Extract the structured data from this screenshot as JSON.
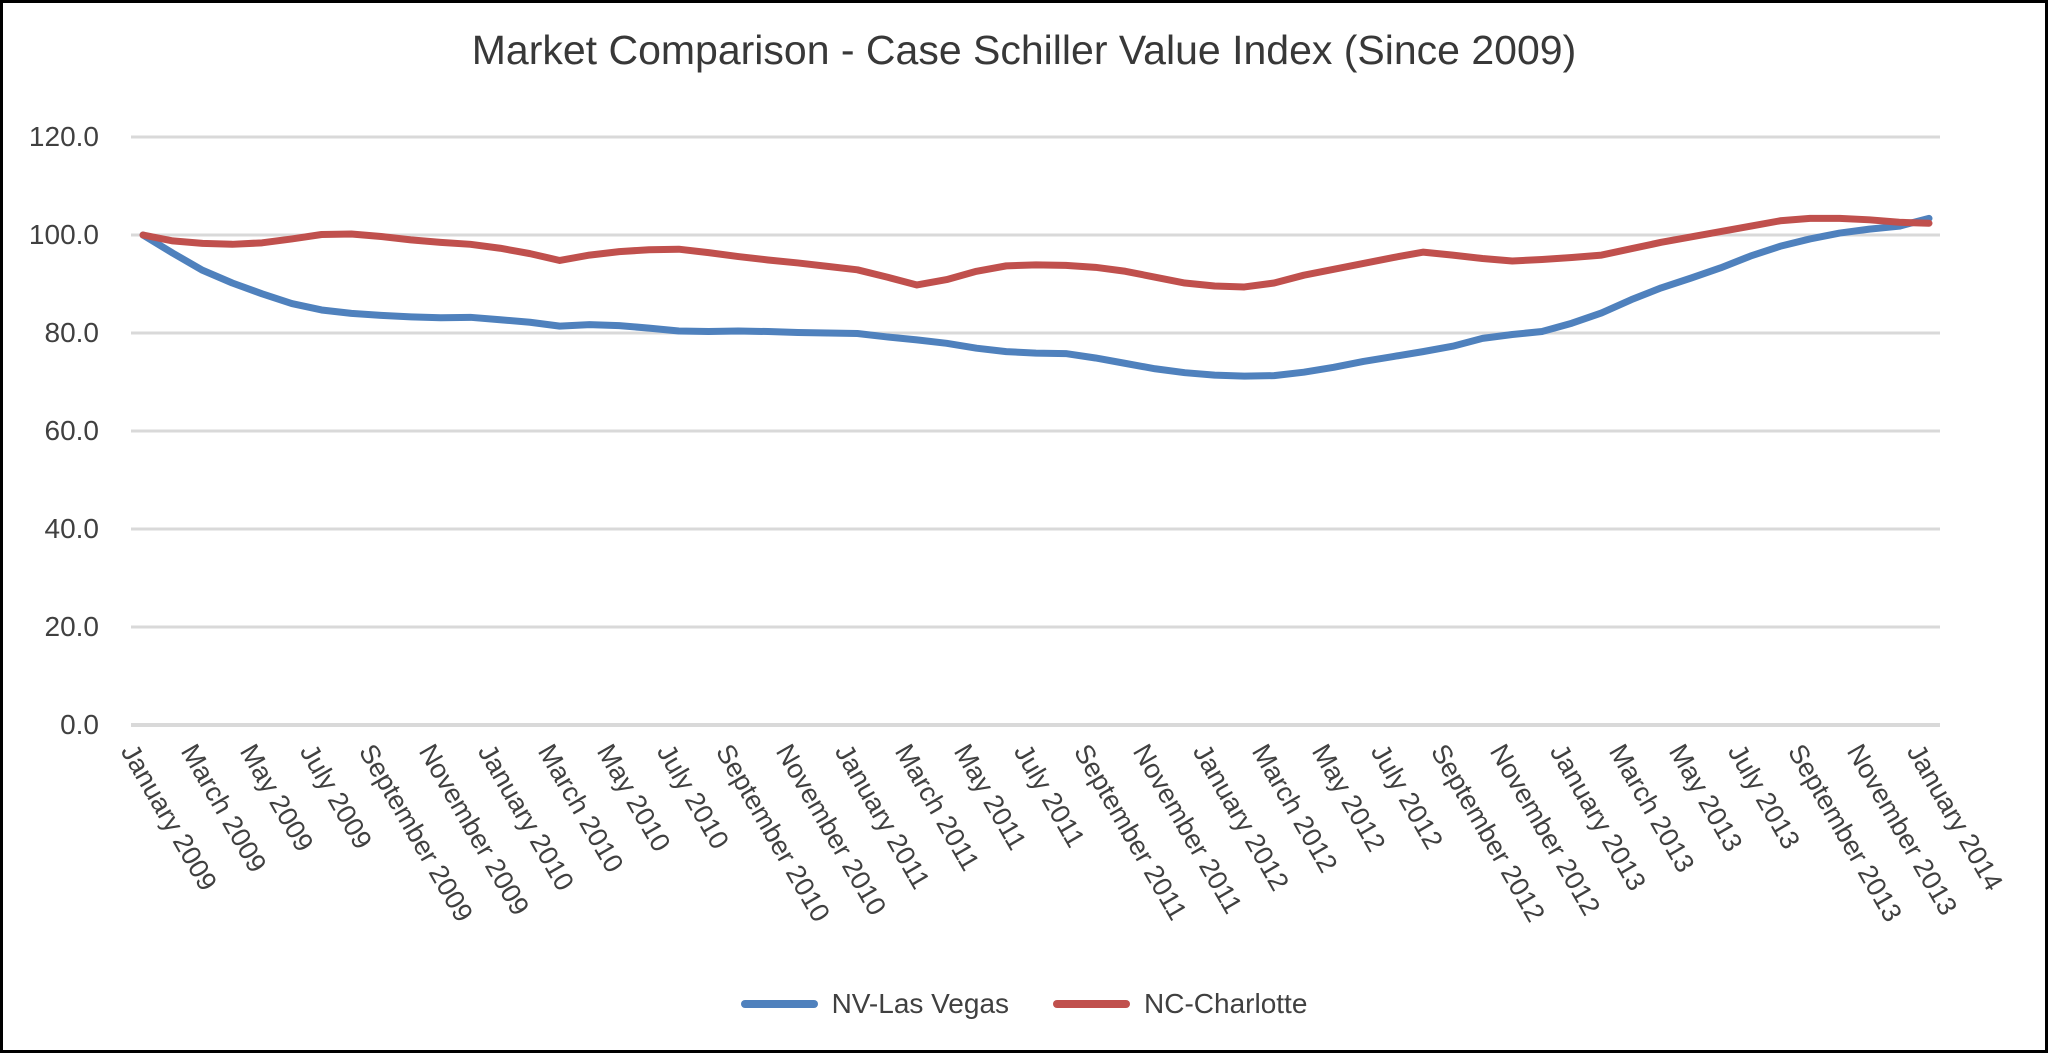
{
  "title": "Market Comparison - Case Schiller Value Index (Since 2009)",
  "legend": {
    "items": [
      {
        "label": "NV-Las Vegas",
        "color": "#4F81BD"
      },
      {
        "label": "NC-Charlotte",
        "color": "#C0504D"
      }
    ]
  },
  "chart_data": {
    "type": "line",
    "title": "Market Comparison - Case Schiller Value Index (Since 2009)",
    "xlabel": "",
    "ylabel": "",
    "ylim": [
      0,
      120
    ],
    "grid": "horizontal",
    "gridline_color": "#D9D9D9",
    "legend_position": "bottom",
    "x_months_total": 61,
    "xtick_every_months": 2,
    "xtick_labels": [
      "January 2009",
      "March 2009",
      "May 2009",
      "July 2009",
      "September 2009",
      "November 2009",
      "January 2010",
      "March 2010",
      "May 2010",
      "July 2010",
      "September 2010",
      "November 2010",
      "January 2011",
      "March 2011",
      "May 2011",
      "July 2011",
      "September 2011",
      "November 2011",
      "January 2012",
      "March 2012",
      "May 2012",
      "July 2012",
      "September 2012",
      "November 2012",
      "January 2013",
      "March 2013",
      "May 2013",
      "July 2013",
      "September 2013",
      "November 2013",
      "January 2014"
    ],
    "y_ticks": [
      "0.0",
      "20.0",
      "40.0",
      "60.0",
      "80.0",
      "100.0",
      "120.0"
    ],
    "series": [
      {
        "name": "NV-Las Vegas",
        "color": "#4F81BD",
        "values": [
          100.0,
          96.3,
          92.8,
          90.2,
          88.0,
          86.0,
          84.7,
          84.0,
          83.6,
          83.3,
          83.1,
          83.2,
          82.7,
          82.2,
          81.4,
          81.7,
          81.5,
          81.0,
          80.4,
          80.3,
          80.4,
          80.3,
          80.1,
          80.0,
          79.9,
          79.2,
          78.6,
          77.9,
          76.9,
          76.2,
          75.9,
          75.8,
          74.9,
          73.8,
          72.7,
          71.9,
          71.4,
          71.2,
          71.3,
          72.0,
          73.0,
          74.2,
          75.2,
          76.2,
          77.3,
          78.9,
          79.7,
          80.3,
          82.0,
          84.1,
          86.8,
          89.2,
          91.2,
          93.3,
          95.7,
          97.7,
          99.2,
          100.4,
          101.2,
          101.8,
          103.4
        ]
      },
      {
        "name": "NC-Charlotte",
        "color": "#C0504D",
        "values": [
          100.0,
          98.8,
          98.3,
          98.1,
          98.4,
          99.2,
          100.1,
          100.2,
          99.7,
          99.0,
          98.5,
          98.1,
          97.3,
          96.2,
          94.8,
          95.9,
          96.6,
          97.0,
          97.1,
          96.4,
          95.6,
          94.9,
          94.3,
          93.6,
          92.9,
          91.4,
          89.8,
          90.9,
          92.6,
          93.7,
          93.9,
          93.8,
          93.4,
          92.6,
          91.4,
          90.2,
          89.6,
          89.4,
          90.2,
          91.8,
          93.0,
          94.2,
          95.4,
          96.5,
          95.9,
          95.2,
          94.7,
          95.0,
          95.4,
          95.9,
          97.2,
          98.5,
          99.6,
          100.7,
          101.8,
          102.9,
          103.4,
          103.4,
          103.1,
          102.6,
          102.4
        ]
      }
    ]
  }
}
